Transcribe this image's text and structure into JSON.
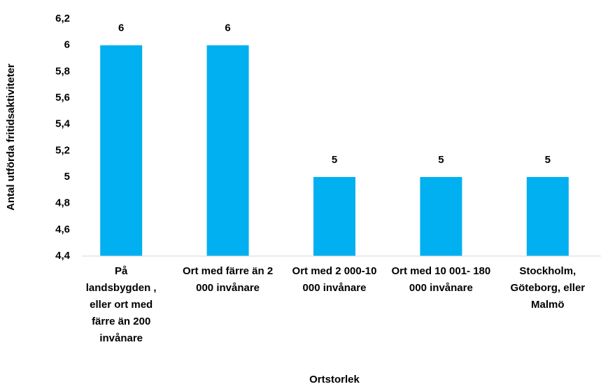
{
  "chart_data": {
    "type": "bar",
    "y_label": "Antal utförda fritidsaktiviteter",
    "x_label": "Ortstorlek",
    "categories": [
      "På landsbygden , eller ort med färre än 200 invånare",
      "Ort med färre än 2 000 invånare",
      "Ort med 2 000-10 000 invånare",
      "Ort med 10 001- 180 000 invånare",
      "Stockholm, Göteborg, eller Malmö"
    ],
    "values": [
      6,
      6,
      5,
      5,
      5
    ],
    "color": "#00b0f0",
    "ylim": [
      4.4,
      6.2
    ],
    "yticks": [
      {
        "value": 4.4,
        "label": "4,4"
      },
      {
        "value": 4.6,
        "label": "4,6"
      },
      {
        "value": 4.8,
        "label": "4,8"
      },
      5,
      {
        "value": 5.2,
        "label": "5,2"
      },
      {
        "value": 5.4,
        "label": "5,4"
      },
      {
        "value": 5.6,
        "label": "5,6"
      },
      {
        "value": 5.8,
        "label": "5,8"
      },
      6,
      {
        "value": 6.2,
        "label": "6,2"
      }
    ],
    "grid": false
  }
}
